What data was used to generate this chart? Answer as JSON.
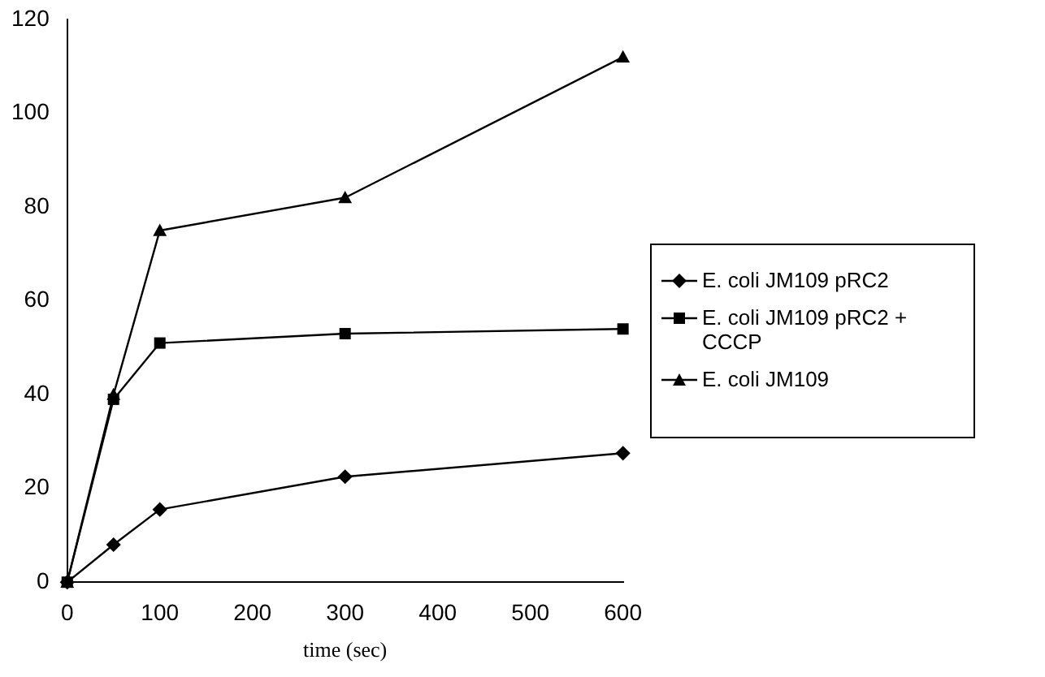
{
  "chart_data": {
    "type": "line",
    "xlabel": "time (sec)",
    "x": [
      0,
      50,
      100,
      300,
      600
    ],
    "xlim": [
      0,
      600
    ],
    "xticks": [
      0,
      100,
      200,
      300,
      400,
      500,
      600
    ],
    "ylim": [
      0,
      120
    ],
    "yticks": [
      0,
      20,
      40,
      60,
      80,
      100,
      120
    ],
    "grid": false,
    "legend": "right",
    "line_style": "solid",
    "series": [
      {
        "name": "E. coli JM109 pRC2",
        "color": "#000000",
        "marker": "diamond",
        "values": [
          0,
          8,
          15.5,
          22.5,
          27.5
        ]
      },
      {
        "name": "E. coli JM109 pRC2 + CCCP",
        "color": "#000000",
        "marker": "square",
        "values": [
          0,
          39,
          51,
          53,
          54
        ]
      },
      {
        "name": "E. coli JM109",
        "color": "#000000",
        "marker": "triangle",
        "values": [
          0,
          40,
          75,
          82,
          112
        ]
      }
    ]
  }
}
